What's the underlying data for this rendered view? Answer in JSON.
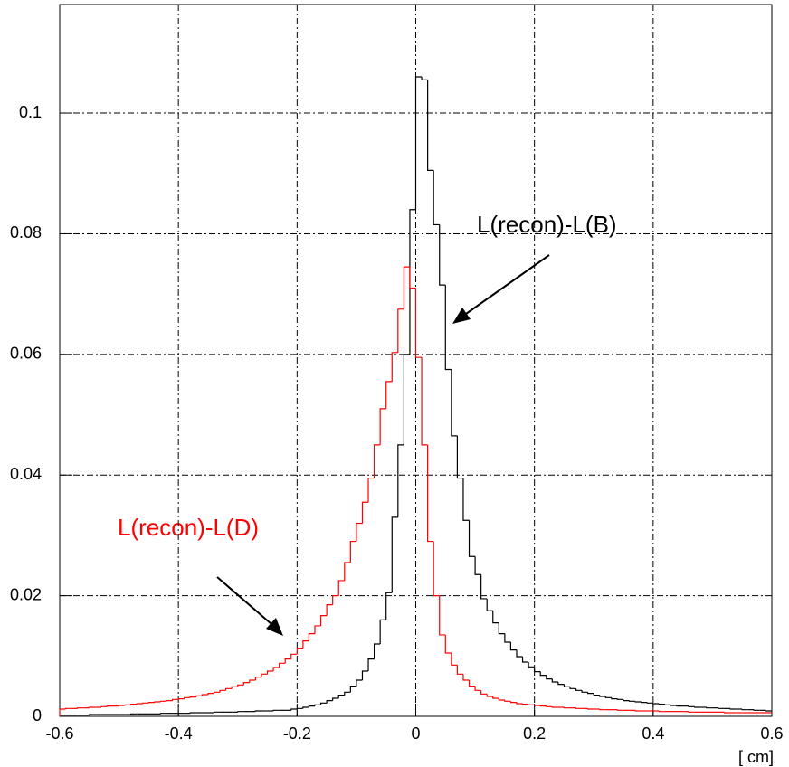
{
  "chart_data": {
    "type": "histogram",
    "x_label": "[ cm]",
    "bins": [
      -0.6,
      -0.59,
      -0.58,
      -0.57,
      -0.56,
      -0.55,
      -0.54,
      -0.53,
      -0.52,
      -0.51,
      -0.5,
      -0.49,
      -0.48,
      -0.47,
      -0.46,
      -0.45,
      -0.44,
      -0.43,
      -0.42,
      -0.41,
      -0.4,
      -0.39,
      -0.38,
      -0.37,
      -0.36,
      -0.35,
      -0.34,
      -0.33,
      -0.32,
      -0.31,
      -0.3,
      -0.29,
      -0.28,
      -0.27,
      -0.26,
      -0.25,
      -0.24,
      -0.23,
      -0.22,
      -0.21,
      -0.2,
      -0.19,
      -0.18,
      -0.17,
      -0.16,
      -0.15,
      -0.14,
      -0.13,
      -0.12,
      -0.11,
      -0.1,
      -0.09,
      -0.08,
      -0.07,
      -0.06,
      -0.05,
      -0.04,
      -0.03,
      -0.02,
      -0.01,
      0,
      0.01,
      0.02,
      0.03,
      0.04,
      0.05,
      0.06,
      0.07,
      0.08,
      0.09,
      0.1,
      0.11,
      0.12,
      0.13,
      0.14,
      0.15,
      0.16,
      0.17,
      0.18,
      0.19,
      0.2,
      0.21,
      0.22,
      0.23,
      0.24,
      0.25,
      0.26,
      0.27,
      0.28,
      0.29,
      0.3,
      0.31,
      0.32,
      0.33,
      0.34,
      0.35,
      0.36,
      0.37,
      0.38,
      0.39,
      0.4,
      0.41,
      0.42,
      0.43,
      0.44,
      0.45,
      0.46,
      0.47,
      0.48,
      0.49,
      0.5,
      0.51,
      0.52,
      0.53,
      0.54,
      0.55,
      0.56,
      0.57,
      0.58,
      0.59,
      0.6
    ],
    "series": [
      {
        "name": "L(recon)-L(B)",
        "color": "#000000",
        "values": [
          0.0002,
          0.0002,
          0.0002,
          0.0002,
          0.0002,
          0.0003,
          0.0003,
          0.0003,
          0.0003,
          0.0003,
          0.0003,
          0.0003,
          0.0004,
          0.0004,
          0.0004,
          0.0004,
          0.0004,
          0.0005,
          0.0005,
          0.0005,
          0.0005,
          0.0005,
          0.0006,
          0.0006,
          0.0006,
          0.0006,
          0.0007,
          0.0007,
          0.0007,
          0.0007,
          0.0008,
          0.0008,
          0.0008,
          0.0009,
          0.0009,
          0.0009,
          0.001,
          0.001,
          0.001,
          0.0012,
          0.0013,
          0.0015,
          0.0017,
          0.0019,
          0.0022,
          0.0026,
          0.003,
          0.0035,
          0.004,
          0.005,
          0.006,
          0.0075,
          0.0095,
          0.012,
          0.016,
          0.0205,
          0.033,
          0.045,
          0.06,
          0.084,
          0.106,
          0.1055,
          0.0905,
          0.0815,
          0.0715,
          0.0575,
          0.0465,
          0.0395,
          0.0325,
          0.0265,
          0.0235,
          0.0195,
          0.0175,
          0.0155,
          0.0137,
          0.0123,
          0.011,
          0.0099,
          0.009,
          0.0082,
          0.0074,
          0.0068,
          0.0062,
          0.0057,
          0.0053,
          0.0049,
          0.0046,
          0.0043,
          0.004,
          0.0038,
          0.0035,
          0.0033,
          0.0031,
          0.0029,
          0.0028,
          0.0026,
          0.0025,
          0.0024,
          0.0023,
          0.0022,
          0.0021,
          0.002,
          0.0019,
          0.0018,
          0.0017,
          0.0017,
          0.0016,
          0.0015,
          0.0015,
          0.0014,
          0.0014,
          0.0013,
          0.0013,
          0.0012,
          0.0012,
          0.0011,
          0.0011,
          0.001,
          0.001,
          0.0009
        ]
      },
      {
        "name": "L(recon)-L(D)",
        "color": "#ff0000",
        "values": [
          0.0012,
          0.0013,
          0.0013,
          0.0014,
          0.0014,
          0.0015,
          0.0015,
          0.0016,
          0.0017,
          0.0017,
          0.0018,
          0.0019,
          0.002,
          0.0021,
          0.0022,
          0.0023,
          0.0024,
          0.0025,
          0.0026,
          0.0028,
          0.0029,
          0.0031,
          0.0032,
          0.0034,
          0.0036,
          0.0038,
          0.004,
          0.0043,
          0.0046,
          0.0049,
          0.0052,
          0.0056,
          0.006,
          0.0065,
          0.007,
          0.0075,
          0.0081,
          0.0088,
          0.0095,
          0.0103,
          0.0113,
          0.0125,
          0.0137,
          0.015,
          0.0167,
          0.0185,
          0.02,
          0.0225,
          0.0255,
          0.029,
          0.032,
          0.0355,
          0.0395,
          0.045,
          0.051,
          0.0555,
          0.0603,
          0.0675,
          0.0745,
          0.071,
          0.0595,
          0.045,
          0.029,
          0.02,
          0.0135,
          0.0105,
          0.0085,
          0.007,
          0.006,
          0.005,
          0.0043,
          0.0037,
          0.0033,
          0.003,
          0.0027,
          0.0025,
          0.0023,
          0.0021,
          0.002,
          0.0019,
          0.0018,
          0.0017,
          0.0016,
          0.0015,
          0.0015,
          0.0014,
          0.0014,
          0.0013,
          0.0013,
          0.0012,
          0.0012,
          0.0011,
          0.0011,
          0.0011,
          0.001,
          0.001,
          0.001,
          0.0009,
          0.0009,
          0.0009,
          0.0009,
          0.0008,
          0.0008,
          0.0008,
          0.0008,
          0.0008,
          0.0007,
          0.0007,
          0.0007,
          0.0007,
          0.0007,
          0.0007,
          0.0006,
          0.0006,
          0.0006,
          0.0006,
          0.0006,
          0.0006,
          0.0006,
          0.0006
        ]
      }
    ],
    "xlim": [
      -0.6,
      0.6
    ],
    "ylim": [
      0,
      0.118
    ],
    "xticks": [
      -0.6,
      -0.4,
      -0.2,
      0,
      0.2,
      0.4,
      0.6
    ],
    "yticks": [
      0,
      0.02,
      0.04,
      0.06,
      0.08,
      0.1
    ],
    "grid": true
  }
}
